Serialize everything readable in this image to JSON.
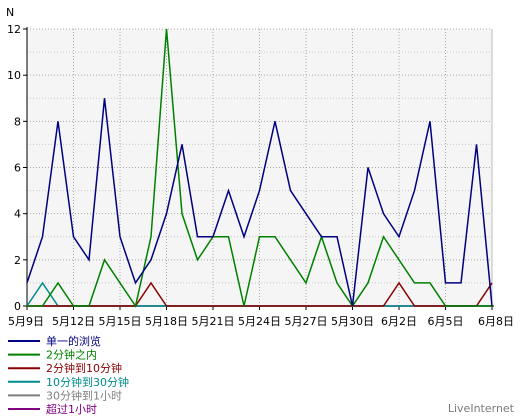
{
  "chart_data": {
    "type": "line",
    "ylabel": "N",
    "ylim": [
      0,
      12
    ],
    "yticks": [
      0,
      2,
      4,
      6,
      8,
      10,
      12
    ],
    "grid": true,
    "x": [
      "5月9日",
      "5月10日",
      "5月11日",
      "5月12日",
      "5月13日",
      "5月14日",
      "5月15日",
      "5月16日",
      "5月17日",
      "5月18日",
      "5月19日",
      "5月20日",
      "5月21日",
      "5月22日",
      "5月23日",
      "5月24日",
      "5月25日",
      "5月26日",
      "5月27日",
      "5月28日",
      "5月29日",
      "5月30日",
      "5月31日",
      "6月1日",
      "6月2日",
      "6月3日",
      "6月4日",
      "6月5日",
      "6月6日",
      "6月7日",
      "6月8日"
    ],
    "xtick_labels": [
      "5月9日",
      "5月12日",
      "5月15日",
      "5月18日",
      "5月21日",
      "5月24日",
      "5月27日",
      "5月30日",
      "6月2日",
      "6月5日",
      "6月8日"
    ],
    "series": [
      {
        "name": "单一的浏览",
        "color": "#000080",
        "values": [
          1,
          3,
          8,
          3,
          2,
          9,
          3,
          1,
          2,
          4,
          7,
          3,
          3,
          5,
          3,
          5,
          8,
          5,
          4,
          3,
          3,
          0,
          6,
          4,
          3,
          5,
          8,
          1,
          1,
          7,
          0
        ]
      },
      {
        "name": "2分钟之内",
        "color": "#008000",
        "values": [
          0,
          0,
          1,
          0,
          0,
          2,
          1,
          0,
          3,
          12,
          4,
          2,
          3,
          3,
          0,
          3,
          3,
          2,
          1,
          3,
          1,
          0,
          1,
          3,
          2,
          1,
          1,
          0,
          0,
          0,
          0
        ]
      },
      {
        "name": "2分钟到10分钟",
        "color": "#8b0000",
        "values": [
          0,
          0,
          0,
          0,
          0,
          0,
          0,
          0,
          1,
          0,
          0,
          0,
          0,
          0,
          0,
          0,
          0,
          0,
          0,
          0,
          0,
          0,
          0,
          0,
          1,
          0,
          0,
          0,
          0,
          0,
          1
        ]
      },
      {
        "name": "10分钟到30分钟",
        "color": "#008b8b",
        "values": [
          0,
          1,
          0,
          0,
          0,
          0,
          0,
          0,
          0,
          0,
          0,
          0,
          0,
          0,
          0,
          0,
          0,
          0,
          0,
          0,
          0,
          0,
          0,
          0,
          0,
          0,
          0,
          0,
          0,
          0,
          0
        ]
      },
      {
        "name": "30分钟到1小时",
        "color": "#808080",
        "values": [
          0,
          0,
          0,
          0,
          0,
          0,
          0,
          0,
          0,
          0,
          0,
          0,
          0,
          0,
          0,
          0,
          0,
          0,
          0,
          0,
          0,
          0,
          0,
          0,
          0,
          0,
          0,
          0,
          0,
          0,
          0
        ]
      },
      {
        "name": "超过1小时",
        "color": "#800080",
        "values": [
          0,
          0,
          0,
          0,
          0,
          0,
          0,
          0,
          0,
          0,
          0,
          0,
          0,
          0,
          0,
          0,
          0,
          0,
          0,
          0,
          0,
          0,
          0,
          0,
          0,
          0,
          0,
          0,
          0,
          0,
          0
        ]
      }
    ],
    "legend_position": "bottom-left"
  },
  "credit": "LiveInternet"
}
